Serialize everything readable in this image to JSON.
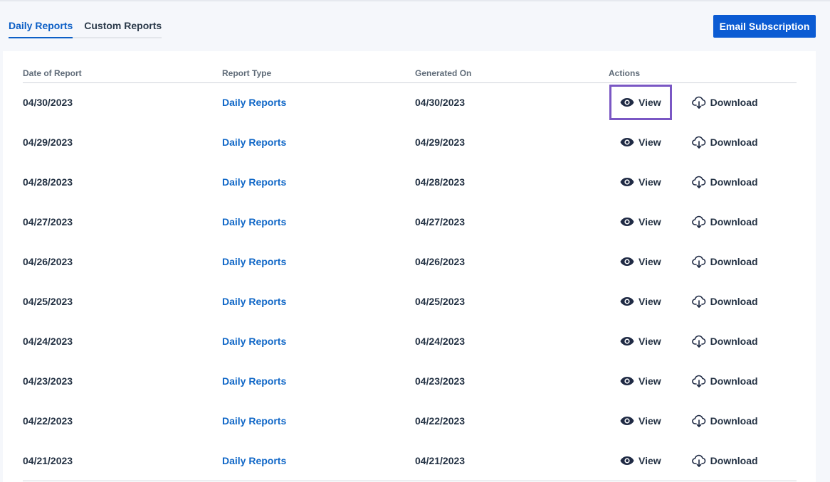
{
  "tabs": [
    {
      "label": "Daily Reports",
      "active": true
    },
    {
      "label": "Custom Reports",
      "active": false
    }
  ],
  "email_button_label": "Email Subscription",
  "table": {
    "headers": [
      "Date of Report",
      "Report Type",
      "Generated On",
      "Actions"
    ],
    "view_label": "View",
    "download_label": "Download",
    "rows": [
      {
        "date": "04/30/2023",
        "type": "Daily Reports",
        "generated": "04/30/2023"
      },
      {
        "date": "04/29/2023",
        "type": "Daily Reports",
        "generated": "04/29/2023"
      },
      {
        "date": "04/28/2023",
        "type": "Daily Reports",
        "generated": "04/28/2023"
      },
      {
        "date": "04/27/2023",
        "type": "Daily Reports",
        "generated": "04/27/2023"
      },
      {
        "date": "04/26/2023",
        "type": "Daily Reports",
        "generated": "04/26/2023"
      },
      {
        "date": "04/25/2023",
        "type": "Daily Reports",
        "generated": "04/25/2023"
      },
      {
        "date": "04/24/2023",
        "type": "Daily Reports",
        "generated": "04/24/2023"
      },
      {
        "date": "04/23/2023",
        "type": "Daily Reports",
        "generated": "04/23/2023"
      },
      {
        "date": "04/22/2023",
        "type": "Daily Reports",
        "generated": "04/22/2023"
      },
      {
        "date": "04/21/2023",
        "type": "Daily Reports",
        "generated": "04/21/2023"
      }
    ]
  },
  "colors": {
    "accent": "#0b5bd3",
    "link": "#1067c7",
    "focus_outline": "#7a57c4"
  },
  "icons": {
    "view": "eye-icon",
    "download": "cloud-download-icon"
  }
}
